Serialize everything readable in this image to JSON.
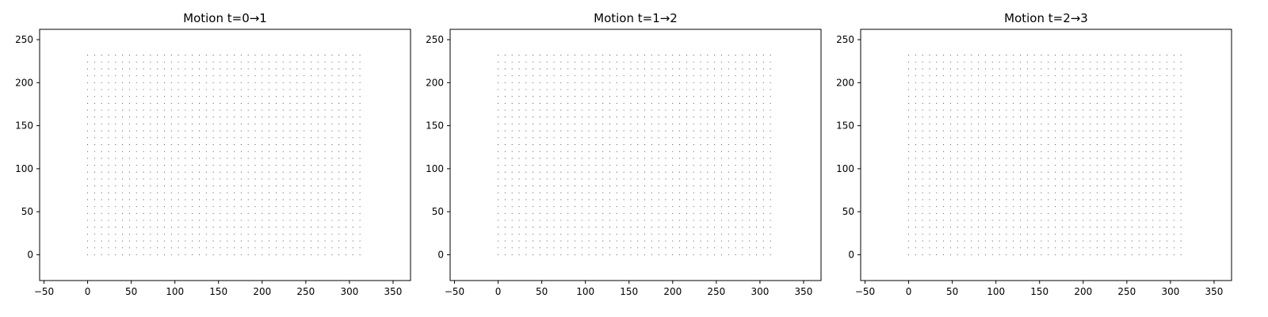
{
  "figure": {
    "background_color": "#ffffff"
  },
  "chart_data": [
    {
      "type": "scatter",
      "title": "Motion t=0→1",
      "xlabel": "",
      "ylabel": "",
      "xlim": [
        -55,
        370
      ],
      "ylim": [
        -30,
        262
      ],
      "xticks": [
        -50,
        0,
        50,
        100,
        150,
        200,
        250,
        300,
        350
      ],
      "yticks": [
        0,
        50,
        100,
        150,
        200,
        250
      ],
      "grid": false,
      "marker_color": "#000000",
      "points": {
        "x_start": 0,
        "x_step": 8,
        "x_count": 40,
        "y_start": 0,
        "y_step": 8,
        "y_count": 30
      }
    },
    {
      "type": "scatter",
      "title": "Motion t=1→2",
      "xlabel": "",
      "ylabel": "",
      "xlim": [
        -55,
        370
      ],
      "ylim": [
        -30,
        262
      ],
      "xticks": [
        -50,
        0,
        50,
        100,
        150,
        200,
        250,
        300,
        350
      ],
      "yticks": [
        0,
        50,
        100,
        150,
        200,
        250
      ],
      "grid": false,
      "marker_color": "#000000",
      "points": {
        "x_start": 0,
        "x_step": 8,
        "x_count": 40,
        "y_start": 0,
        "y_step": 8,
        "y_count": 30
      }
    },
    {
      "type": "scatter",
      "title": "Motion t=2→3",
      "xlabel": "",
      "ylabel": "",
      "xlim": [
        -55,
        370
      ],
      "ylim": [
        -30,
        262
      ],
      "xticks": [
        -50,
        0,
        50,
        100,
        150,
        200,
        250,
        300,
        350
      ],
      "yticks": [
        0,
        50,
        100,
        150,
        200,
        250
      ],
      "grid": false,
      "marker_color": "#000000",
      "points": {
        "x_start": 0,
        "x_step": 8,
        "x_count": 40,
        "y_start": 0,
        "y_step": 8,
        "y_count": 30
      }
    }
  ]
}
